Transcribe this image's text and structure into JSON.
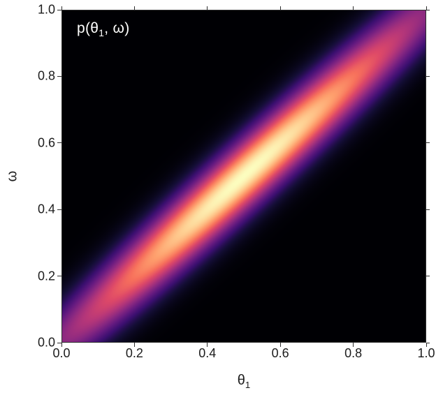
{
  "figure": {
    "background": "#ffffff",
    "frame_color": "#2e2e2e",
    "text_color": "#1c1c1c",
    "annotation": {
      "prefix": "p(θ",
      "sub": "1",
      "suffix": ", ω)",
      "color": "#ffffff"
    },
    "x_axis": {
      "label_base": "θ",
      "label_sub": "1",
      "tick_labels": [
        "0.0",
        "0.2",
        "0.4",
        "0.6",
        "0.8",
        "1.0"
      ],
      "tick_values": [
        0,
        0.2,
        0.4,
        0.6,
        0.8,
        1
      ]
    },
    "y_axis": {
      "label": "ω",
      "tick_labels": [
        "0.0",
        "0.2",
        "0.4",
        "0.6",
        "0.8",
        "1.0"
      ],
      "tick_values": [
        0,
        0.2,
        0.4,
        0.6,
        0.8,
        1
      ]
    }
  },
  "chart_data": {
    "type": "heatmap",
    "annotation": "p(θ₁, ω)",
    "xlabel": "θ₁",
    "ylabel": "ω",
    "xlim": [
      0,
      1
    ],
    "ylim": [
      0,
      1
    ],
    "xticks": [
      0,
      0.2,
      0.4,
      0.6,
      0.8,
      1
    ],
    "yticks": [
      0,
      0.2,
      0.4,
      0.6,
      0.8,
      1
    ],
    "grid": false,
    "legend": "none",
    "plot_background": "#000004",
    "colormap": {
      "name": "magma",
      "stops": [
        "#000004",
        "#140e36",
        "#3b0f70",
        "#641a80",
        "#8c2981",
        "#b73779",
        "#de4968",
        "#f7705c",
        "#fe9f6d",
        "#fecf92",
        "#fcfdbf"
      ]
    },
    "density_model": {
      "shape": "gaussian ridge along the diagonal ω = θ₁, elliptical contours from (0,0) to (1,1)",
      "center": [
        0.5,
        0.5
      ],
      "sigma_along_diagonal": 0.45,
      "sigma_across_diagonal": 0.048,
      "peak_value": 1.0,
      "display_gamma": 0.75
    }
  }
}
